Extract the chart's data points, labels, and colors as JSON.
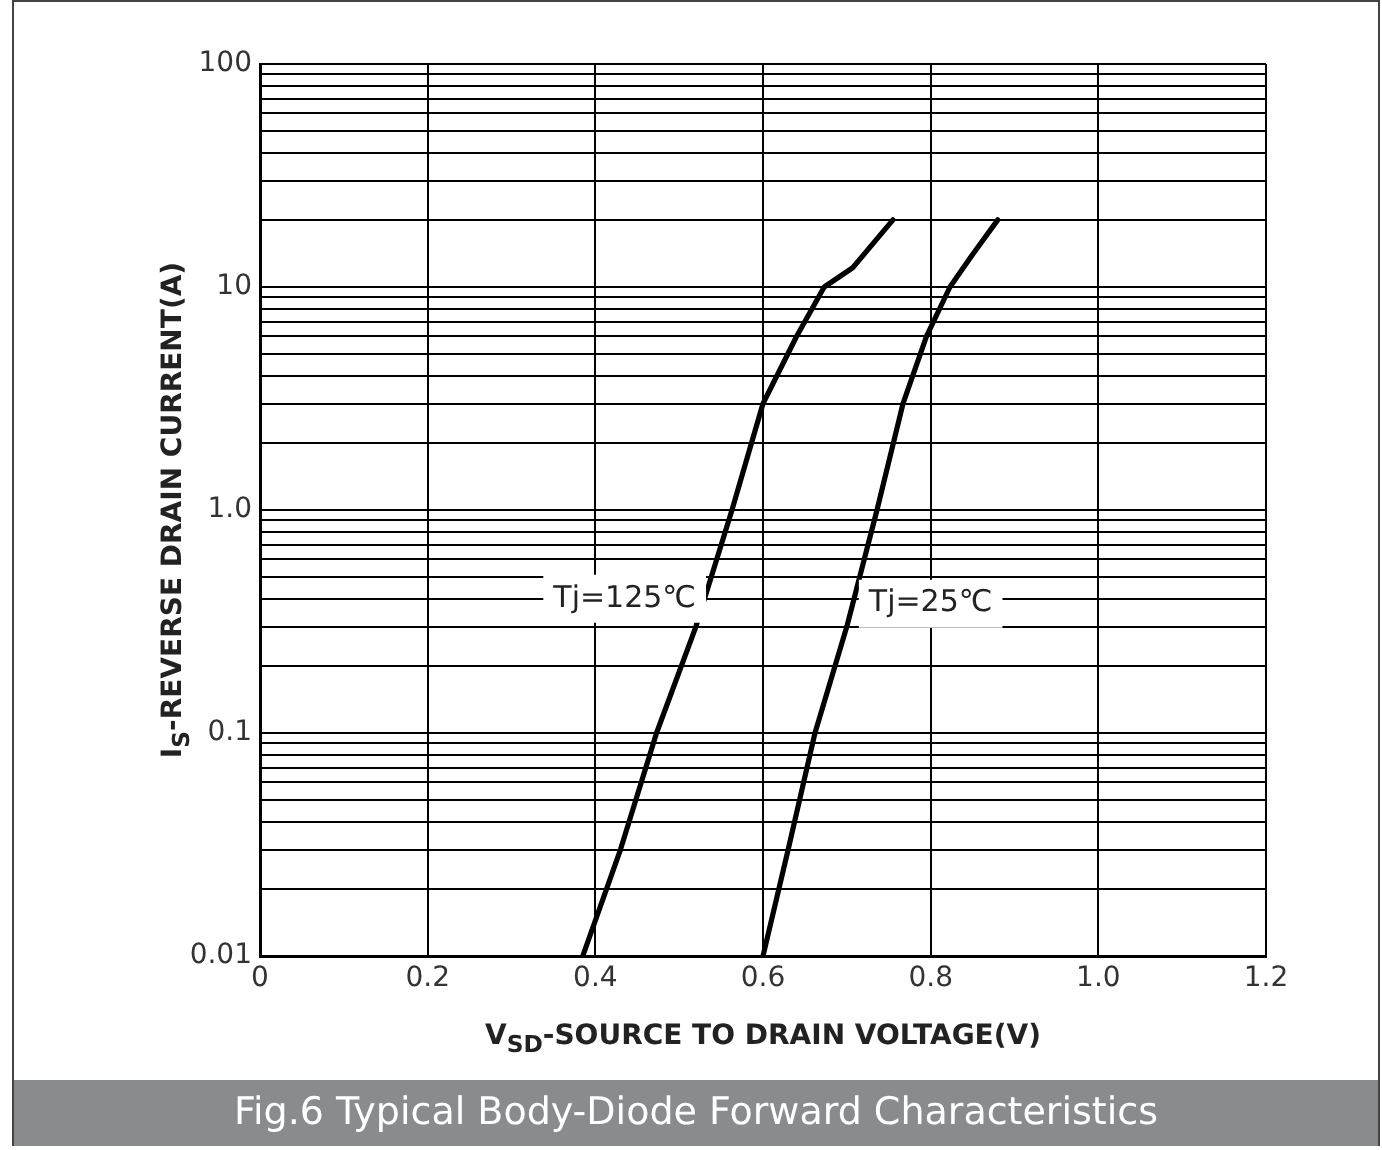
{
  "chart_data": {
    "type": "line",
    "title": "Fig.6 Typical Body-Diode Forward Characteristics",
    "xlabel": "V$_{SD}$-SOURCE TO DRAIN VOLTAGE(V)",
    "ylabel": "I$_{S}$-REVERSE DRAIN CURRENT(A)",
    "series": [
      {
        "name": "Tj=125℃",
        "color": "#000000",
        "x": [
          0.385,
          0.43,
          0.473,
          0.52,
          0.563,
          0.6,
          0.64,
          0.673,
          0.707,
          0.755
        ],
        "values": [
          0.01,
          0.03,
          0.1,
          0.3,
          1,
          3,
          6,
          10,
          12.2,
          20
        ]
      },
      {
        "name": "Tj=25℃",
        "color": "#000000",
        "x": [
          0.6,
          0.63,
          0.662,
          0.7,
          0.736,
          0.767,
          0.795,
          0.823,
          0.85,
          0.88
        ],
        "values": [
          0.01,
          0.03,
          0.1,
          0.3,
          1,
          3,
          6,
          10,
          14,
          20
        ]
      }
    ],
    "xlim": [
      0,
      1.2
    ],
    "xticks": [
      0,
      0.2,
      0.4,
      0.6,
      0.8,
      {
        "value": 1,
        "label": "1.0"
      },
      1.2
    ],
    "ylim": [
      0.01,
      100
    ],
    "yticks": [
      0.01,
      {
        "value": 0.02,
        "label": null
      },
      {
        "value": 0.03,
        "label": null
      },
      {
        "value": 0.04,
        "label": null
      },
      {
        "value": 0.05,
        "label": null
      },
      {
        "value": 0.06,
        "label": null
      },
      {
        "value": 0.07,
        "label": null
      },
      {
        "value": 0.08,
        "label": null
      },
      {
        "value": 0.09,
        "label": null
      },
      0.1,
      {
        "value": 0.2,
        "label": null
      },
      {
        "value": 0.3,
        "label": null
      },
      {
        "value": 0.4,
        "label": null
      },
      {
        "value": 0.5,
        "label": null
      },
      {
        "value": 0.6,
        "label": null
      },
      {
        "value": 0.7,
        "label": null
      },
      {
        "value": 0.8,
        "label": null
      },
      {
        "value": 0.9,
        "label": null
      },
      {
        "value": 1,
        "label": "1.0"
      },
      {
        "value": 2,
        "label": null
      },
      {
        "value": 3,
        "label": null
      },
      {
        "value": 4,
        "label": null
      },
      {
        "value": 5,
        "label": null
      },
      {
        "value": 6,
        "label": null
      },
      {
        "value": 7,
        "label": null
      },
      {
        "value": 8,
        "label": null
      },
      {
        "value": 9,
        "label": null
      },
      10,
      {
        "value": 20,
        "label": null
      },
      {
        "value": 30,
        "label": null
      },
      {
        "value": 40,
        "label": null
      },
      {
        "value": 50,
        "label": null
      },
      {
        "value": 60,
        "label": null
      },
      {
        "value": 70,
        "label": null
      },
      {
        "value": 80,
        "label": null
      },
      {
        "value": 90,
        "label": null
      },
      100
    ],
    "log": "y",
    "grid": true,
    "legend": false,
    "marker": "none",
    "line_style": "solid"
  }
}
